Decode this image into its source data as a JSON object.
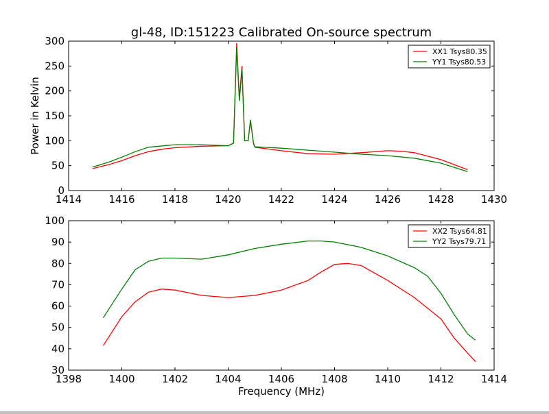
{
  "title": "gl-48, ID:151223 Calibrated On-source spectrum",
  "chart_data": [
    {
      "type": "line",
      "title": "gl-48, ID:151223 Calibrated On-source spectrum",
      "xlabel": "",
      "ylabel": "Power in Kelvin",
      "xlim": [
        1414,
        1430
      ],
      "ylim": [
        0,
        300
      ],
      "xticks": [
        1414,
        1416,
        1418,
        1420,
        1422,
        1424,
        1426,
        1428,
        1430
      ],
      "yticks": [
        0,
        50,
        100,
        150,
        200,
        250,
        300
      ],
      "legend_position": "top-right",
      "series": [
        {
          "name": "XX1 Tsys80.35",
          "color": "#ff0000",
          "x": [
            1414.9,
            1415.5,
            1416,
            1416.5,
            1417,
            1417.5,
            1418,
            1419,
            1420,
            1420.2,
            1420.32,
            1420.42,
            1420.52,
            1420.62,
            1420.75,
            1420.84,
            1420.95,
            1421,
            1422,
            1423,
            1424,
            1425,
            1426,
            1426.5,
            1427,
            1428,
            1429
          ],
          "y": [
            44,
            52,
            60,
            70,
            78,
            83,
            86,
            89,
            90,
            95,
            296,
            185,
            250,
            100,
            100,
            140,
            95,
            87,
            80,
            74,
            73,
            76,
            80,
            79,
            76,
            62,
            42
          ]
        },
        {
          "name": "YY1 Tsys80.53",
          "color": "#008000",
          "x": [
            1414.9,
            1415.5,
            1416,
            1416.5,
            1417,
            1418,
            1419,
            1420,
            1420.2,
            1420.32,
            1420.42,
            1420.52,
            1420.62,
            1420.75,
            1420.84,
            1420.95,
            1421,
            1422,
            1423,
            1424,
            1425,
            1426,
            1427,
            1428,
            1429
          ],
          "y": [
            47,
            57,
            67,
            78,
            87,
            92,
            92,
            90,
            95,
            287,
            180,
            243,
            100,
            100,
            142,
            96,
            88,
            85,
            81,
            77,
            73,
            70,
            65,
            55,
            38
          ]
        }
      ]
    },
    {
      "type": "line",
      "xlabel": "Frequency (MHz)",
      "ylabel": "",
      "xlim": [
        1398,
        1414
      ],
      "ylim": [
        30,
        100
      ],
      "xticks": [
        1398,
        1400,
        1402,
        1404,
        1406,
        1408,
        1410,
        1412,
        1414
      ],
      "yticks": [
        30,
        40,
        50,
        60,
        70,
        80,
        90,
        100
      ],
      "legend_position": "top-right",
      "series": [
        {
          "name": "XX2 Tsys64.81",
          "color": "#ff0000",
          "x": [
            1399.3,
            1400,
            1400.5,
            1401,
            1401.5,
            1402,
            1403,
            1404,
            1405,
            1406,
            1407,
            1407.5,
            1408,
            1408.5,
            1409,
            1410,
            1411,
            1412,
            1412.5,
            1413,
            1413.3
          ],
          "y": [
            41.5,
            55,
            62,
            66.5,
            68,
            67.5,
            65,
            64,
            65,
            67.5,
            72,
            76,
            79.5,
            80,
            79,
            72,
            64,
            54,
            45,
            38,
            34
          ]
        },
        {
          "name": "YY2 Tsys79.71",
          "color": "#008000",
          "x": [
            1399.3,
            1400,
            1400.5,
            1401,
            1401.5,
            1402,
            1403,
            1404,
            1405,
            1406,
            1407,
            1407.5,
            1408,
            1409,
            1410,
            1411,
            1411.5,
            1412,
            1412.5,
            1413,
            1413.3
          ],
          "y": [
            54.5,
            68,
            77,
            81,
            82.5,
            82.5,
            82,
            84,
            87,
            89,
            90.5,
            90.5,
            90,
            87.5,
            83.5,
            78,
            74,
            66,
            56,
            47,
            44
          ]
        }
      ]
    }
  ]
}
